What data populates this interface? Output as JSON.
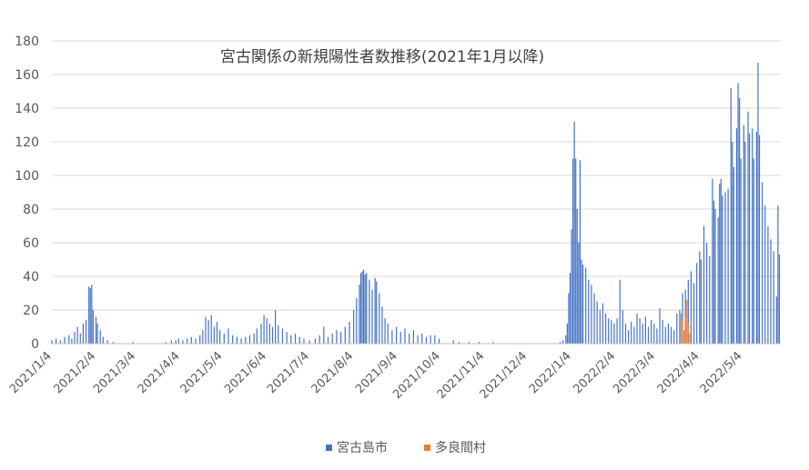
{
  "chart_data": {
    "type": "bar",
    "title": "宮古関係の新規陽性者数推移(2021年1月以降)",
    "xlabel": "",
    "ylabel": "",
    "ylim": [
      0,
      180
    ],
    "y_ticks": [
      0,
      20,
      40,
      60,
      80,
      100,
      120,
      140,
      160,
      180
    ],
    "x_range": [
      "2021-01-04",
      "2022-05-31"
    ],
    "x_tick_labels": [
      "2021/1/4",
      "2021/2/4",
      "2021/3/4",
      "2021/4/4",
      "2021/5/4",
      "2021/6/4",
      "2021/7/4",
      "2021/8/4",
      "2021/9/4",
      "2021/10/4",
      "2021/11/4",
      "2021/12/4",
      "2022/1/4",
      "2022/2/4",
      "2022/3/4",
      "2022/4/4",
      "2022/5/4"
    ],
    "x_tick_dates": [
      "2021-01-04",
      "2021-02-04",
      "2021-03-04",
      "2021-04-04",
      "2021-05-04",
      "2021-06-04",
      "2021-07-04",
      "2021-08-04",
      "2021-09-04",
      "2021-10-04",
      "2021-11-04",
      "2021-12-04",
      "2022-01-04",
      "2022-02-04",
      "2022-03-04",
      "2022-04-04",
      "2022-05-04"
    ],
    "grid": true,
    "legend_position": "bottom",
    "series": [
      {
        "name": "宮古島市",
        "color": "#4472c4",
        "points": [
          [
            "2021-01-04",
            2
          ],
          [
            "2021-01-07",
            3
          ],
          [
            "2021-01-10",
            2
          ],
          [
            "2021-01-13",
            4
          ],
          [
            "2021-01-16",
            5
          ],
          [
            "2021-01-18",
            3
          ],
          [
            "2021-01-20",
            7
          ],
          [
            "2021-01-22",
            10
          ],
          [
            "2021-01-24",
            6
          ],
          [
            "2021-01-26",
            12
          ],
          [
            "2021-01-28",
            14
          ],
          [
            "2021-01-30",
            34
          ],
          [
            "2021-01-31",
            33
          ],
          [
            "2021-02-01",
            35
          ],
          [
            "2021-02-02",
            20
          ],
          [
            "2021-02-04",
            16
          ],
          [
            "2021-02-05",
            12
          ],
          [
            "2021-02-07",
            8
          ],
          [
            "2021-02-09",
            4
          ],
          [
            "2021-02-12",
            2
          ],
          [
            "2021-02-16",
            1
          ],
          [
            "2021-03-02",
            1
          ],
          [
            "2021-03-25",
            1
          ],
          [
            "2021-03-29",
            2
          ],
          [
            "2021-04-01",
            2
          ],
          [
            "2021-04-03",
            3
          ],
          [
            "2021-04-06",
            2
          ],
          [
            "2021-04-09",
            3
          ],
          [
            "2021-04-12",
            4
          ],
          [
            "2021-04-15",
            3
          ],
          [
            "2021-04-18",
            5
          ],
          [
            "2021-04-20",
            8
          ],
          [
            "2021-04-22",
            16
          ],
          [
            "2021-04-24",
            14
          ],
          [
            "2021-04-26",
            17
          ],
          [
            "2021-04-28",
            10
          ],
          [
            "2021-04-30",
            13
          ],
          [
            "2021-05-02",
            8
          ],
          [
            "2021-05-05",
            6
          ],
          [
            "2021-05-08",
            9
          ],
          [
            "2021-05-11",
            5
          ],
          [
            "2021-05-14",
            4
          ],
          [
            "2021-05-17",
            3
          ],
          [
            "2021-05-20",
            4
          ],
          [
            "2021-05-23",
            5
          ],
          [
            "2021-05-26",
            6
          ],
          [
            "2021-05-28",
            9
          ],
          [
            "2021-05-31",
            12
          ],
          [
            "2021-06-02",
            17
          ],
          [
            "2021-06-04",
            15
          ],
          [
            "2021-06-06",
            12
          ],
          [
            "2021-06-08",
            10
          ],
          [
            "2021-06-10",
            20
          ],
          [
            "2021-06-12",
            11
          ],
          [
            "2021-06-15",
            9
          ],
          [
            "2021-06-18",
            7
          ],
          [
            "2021-06-21",
            5
          ],
          [
            "2021-06-24",
            6
          ],
          [
            "2021-06-27",
            4
          ],
          [
            "2021-06-30",
            3
          ],
          [
            "2021-07-04",
            2
          ],
          [
            "2021-07-08",
            3
          ],
          [
            "2021-07-11",
            5
          ],
          [
            "2021-07-14",
            10
          ],
          [
            "2021-07-17",
            4
          ],
          [
            "2021-07-20",
            6
          ],
          [
            "2021-07-23",
            8
          ],
          [
            "2021-07-26",
            7
          ],
          [
            "2021-07-29",
            10
          ],
          [
            "2021-08-01",
            13
          ],
          [
            "2021-08-04",
            20
          ],
          [
            "2021-08-06",
            27
          ],
          [
            "2021-08-08",
            35
          ],
          [
            "2021-08-09",
            42
          ],
          [
            "2021-08-10",
            43
          ],
          [
            "2021-08-11",
            44
          ],
          [
            "2021-08-12",
            41
          ],
          [
            "2021-08-13",
            42
          ],
          [
            "2021-08-15",
            38
          ],
          [
            "2021-08-17",
            32
          ],
          [
            "2021-08-19",
            39
          ],
          [
            "2021-08-20",
            37
          ],
          [
            "2021-08-22",
            30
          ],
          [
            "2021-08-24",
            22
          ],
          [
            "2021-08-26",
            15
          ],
          [
            "2021-08-28",
            12
          ],
          [
            "2021-08-31",
            8
          ],
          [
            "2021-09-03",
            10
          ],
          [
            "2021-09-06",
            7
          ],
          [
            "2021-09-09",
            9
          ],
          [
            "2021-09-12",
            6
          ],
          [
            "2021-09-15",
            8
          ],
          [
            "2021-09-18",
            5
          ],
          [
            "2021-09-21",
            6
          ],
          [
            "2021-09-24",
            4
          ],
          [
            "2021-09-27",
            5
          ],
          [
            "2021-09-30",
            5
          ],
          [
            "2021-10-03",
            3
          ],
          [
            "2021-10-13",
            2
          ],
          [
            "2021-10-17",
            1
          ],
          [
            "2021-10-24",
            1
          ],
          [
            "2021-10-31",
            1
          ],
          [
            "2021-11-10",
            1
          ],
          [
            "2021-12-27",
            1
          ],
          [
            "2021-12-29",
            2
          ],
          [
            "2021-12-31",
            5
          ],
          [
            "2022-01-01",
            12
          ],
          [
            "2022-01-02",
            30
          ],
          [
            "2022-01-03",
            42
          ],
          [
            "2022-01-04",
            68
          ],
          [
            "2022-01-05",
            110
          ],
          [
            "2022-01-06",
            132
          ],
          [
            "2022-01-07",
            110
          ],
          [
            "2022-01-08",
            80
          ],
          [
            "2022-01-09",
            60
          ],
          [
            "2022-01-10",
            109
          ],
          [
            "2022-01-11",
            50
          ],
          [
            "2022-01-12",
            47
          ],
          [
            "2022-01-14",
            45
          ],
          [
            "2022-01-16",
            38
          ],
          [
            "2022-01-18",
            35
          ],
          [
            "2022-01-20",
            30
          ],
          [
            "2022-01-22",
            25
          ],
          [
            "2022-01-24",
            20
          ],
          [
            "2022-01-26",
            24
          ],
          [
            "2022-01-28",
            18
          ],
          [
            "2022-01-30",
            15
          ],
          [
            "2022-02-01",
            14
          ],
          [
            "2022-02-03",
            12
          ],
          [
            "2022-02-05",
            15
          ],
          [
            "2022-02-07",
            38
          ],
          [
            "2022-02-09",
            20
          ],
          [
            "2022-02-11",
            12
          ],
          [
            "2022-02-13",
            8
          ],
          [
            "2022-02-15",
            13
          ],
          [
            "2022-02-17",
            10
          ],
          [
            "2022-02-19",
            18
          ],
          [
            "2022-02-21",
            15
          ],
          [
            "2022-02-23",
            12
          ],
          [
            "2022-02-25",
            16
          ],
          [
            "2022-02-27",
            10
          ],
          [
            "2022-03-01",
            14
          ],
          [
            "2022-03-03",
            12
          ],
          [
            "2022-03-05",
            9
          ],
          [
            "2022-03-07",
            21
          ],
          [
            "2022-03-09",
            14
          ],
          [
            "2022-03-11",
            10
          ],
          [
            "2022-03-13",
            12
          ],
          [
            "2022-03-15",
            10
          ],
          [
            "2022-03-17",
            8
          ],
          [
            "2022-03-19",
            18
          ],
          [
            "2022-03-21",
            20
          ],
          [
            "2022-03-23",
            30
          ],
          [
            "2022-03-25",
            32
          ],
          [
            "2022-03-27",
            38
          ],
          [
            "2022-03-29",
            43
          ],
          [
            "2022-03-31",
            36
          ],
          [
            "2022-04-02",
            48
          ],
          [
            "2022-04-04",
            55
          ],
          [
            "2022-04-05",
            50
          ],
          [
            "2022-04-07",
            70
          ],
          [
            "2022-04-09",
            60
          ],
          [
            "2022-04-11",
            52
          ],
          [
            "2022-04-13",
            98
          ],
          [
            "2022-04-14",
            85
          ],
          [
            "2022-04-15",
            80
          ],
          [
            "2022-04-17",
            75
          ],
          [
            "2022-04-18",
            95
          ],
          [
            "2022-04-19",
            98
          ],
          [
            "2022-04-20",
            88
          ],
          [
            "2022-04-22",
            90
          ],
          [
            "2022-04-24",
            92
          ],
          [
            "2022-04-26",
            152
          ],
          [
            "2022-04-27",
            120
          ],
          [
            "2022-04-28",
            105
          ],
          [
            "2022-04-30",
            128
          ],
          [
            "2022-05-01",
            155
          ],
          [
            "2022-05-02",
            146
          ],
          [
            "2022-05-03",
            110
          ],
          [
            "2022-05-05",
            130
          ],
          [
            "2022-05-06",
            120
          ],
          [
            "2022-05-08",
            138
          ],
          [
            "2022-05-09",
            125
          ],
          [
            "2022-05-11",
            128
          ],
          [
            "2022-05-12",
            110
          ],
          [
            "2022-05-14",
            126
          ],
          [
            "2022-05-15",
            167
          ],
          [
            "2022-05-16",
            124
          ],
          [
            "2022-05-18",
            96
          ],
          [
            "2022-05-20",
            82
          ],
          [
            "2022-05-22",
            70
          ],
          [
            "2022-05-24",
            62
          ],
          [
            "2022-05-26",
            55
          ],
          [
            "2022-05-28",
            28
          ],
          [
            "2022-05-29",
            82
          ],
          [
            "2022-05-30",
            53
          ]
        ]
      },
      {
        "name": "多良間村",
        "color": "#ed7d31",
        "points": [
          [
            "2022-03-22",
            18
          ],
          [
            "2022-03-23",
            14
          ],
          [
            "2022-03-24",
            8
          ],
          [
            "2022-03-25",
            16
          ],
          [
            "2022-03-26",
            26
          ],
          [
            "2022-03-27",
            12
          ],
          [
            "2022-03-28",
            6
          ]
        ]
      }
    ]
  }
}
